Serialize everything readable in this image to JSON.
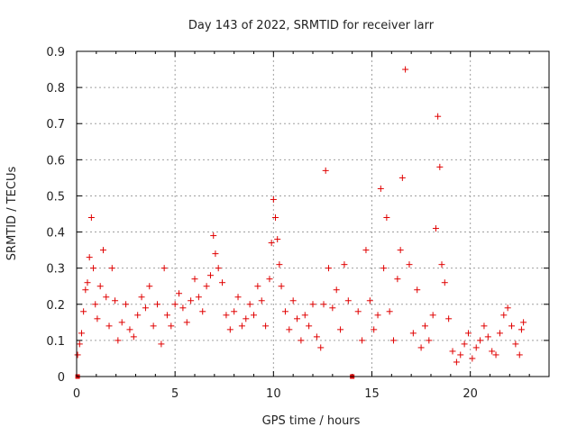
{
  "chart_data": {
    "type": "scatter",
    "title": "Day 143 of 2022, SRMTID for receiver larr",
    "xlabel": "GPS time / hours",
    "ylabel": "SRMTID / TECUs",
    "xlim": [
      0,
      24
    ],
    "ylim": [
      0,
      0.9
    ],
    "xticks": [
      0,
      5,
      10,
      15,
      20
    ],
    "xtick_labels": [
      "0",
      "5",
      "10",
      "15",
      "20"
    ],
    "yticks": [
      0,
      0.1,
      0.2,
      0.3,
      0.4,
      0.5,
      0.6,
      0.7,
      0.8,
      0.9
    ],
    "ytick_labels": [
      "0",
      "0.1",
      "0.2",
      "0.3",
      "0.4",
      "0.5",
      "0.6",
      "0.7",
      "0.8",
      "0.9"
    ],
    "grid": true,
    "marker": "+",
    "color": "#e00000",
    "series": [
      {
        "name": "SRMTID",
        "x": [
          0.05,
          0.15,
          0.25,
          0.35,
          0.45,
          0.55,
          0.65,
          0.75,
          0.85,
          0.95,
          1.05,
          1.2,
          1.35,
          1.5,
          1.65,
          1.8,
          1.95,
          2.1,
          2.3,
          2.5,
          2.7,
          2.9,
          3.1,
          3.3,
          3.5,
          3.7,
          3.9,
          4.1,
          4.3,
          4.45,
          4.6,
          4.8,
          5.0,
          5.2,
          5.4,
          5.6,
          5.8,
          6.0,
          6.2,
          6.4,
          6.6,
          6.8,
          6.95,
          7.05,
          7.2,
          7.4,
          7.6,
          7.8,
          8.0,
          8.2,
          8.4,
          8.6,
          8.8,
          9.0,
          9.2,
          9.4,
          9.6,
          9.8,
          9.9,
          10.0,
          10.1,
          10.2,
          10.3,
          10.4,
          10.6,
          10.8,
          11.0,
          11.2,
          11.4,
          11.6,
          11.8,
          12.0,
          12.2,
          12.4,
          12.55,
          12.65,
          12.8,
          13.0,
          13.2,
          13.4,
          13.6,
          13.8,
          14.3,
          14.5,
          14.7,
          14.9,
          15.1,
          15.3,
          15.45,
          15.6,
          15.75,
          15.9,
          16.1,
          16.3,
          16.45,
          16.55,
          16.7,
          16.9,
          17.1,
          17.3,
          17.5,
          17.7,
          17.9,
          18.1,
          18.25,
          18.35,
          18.45,
          18.55,
          18.7,
          18.9,
          19.1,
          19.3,
          19.5,
          19.7,
          19.9,
          20.1,
          20.3,
          20.5,
          20.7,
          20.9,
          21.1,
          21.3,
          21.5,
          21.7,
          21.9,
          22.1,
          22.3,
          22.5,
          22.6,
          22.7
        ],
        "y": [
          0.06,
          0.09,
          0.12,
          0.18,
          0.24,
          0.26,
          0.33,
          0.44,
          0.3,
          0.2,
          0.16,
          0.25,
          0.35,
          0.22,
          0.14,
          0.3,
          0.21,
          0.1,
          0.15,
          0.2,
          0.13,
          0.11,
          0.17,
          0.22,
          0.19,
          0.25,
          0.14,
          0.2,
          0.09,
          0.3,
          0.17,
          0.14,
          0.2,
          0.23,
          0.19,
          0.15,
          0.21,
          0.27,
          0.22,
          0.18,
          0.25,
          0.28,
          0.39,
          0.34,
          0.3,
          0.26,
          0.17,
          0.13,
          0.18,
          0.22,
          0.14,
          0.16,
          0.2,
          0.17,
          0.25,
          0.21,
          0.14,
          0.27,
          0.37,
          0.49,
          0.44,
          0.38,
          0.31,
          0.25,
          0.18,
          0.13,
          0.21,
          0.16,
          0.1,
          0.17,
          0.14,
          0.2,
          0.11,
          0.08,
          0.2,
          0.57,
          0.3,
          0.19,
          0.24,
          0.13,
          0.31,
          0.21,
          0.18,
          0.1,
          0.35,
          0.21,
          0.13,
          0.17,
          0.52,
          0.3,
          0.44,
          0.18,
          0.1,
          0.27,
          0.35,
          0.55,
          0.85,
          0.31,
          0.12,
          0.24,
          0.08,
          0.14,
          0.1,
          0.17,
          0.41,
          0.72,
          0.58,
          0.31,
          0.26,
          0.16,
          0.07,
          0.04,
          0.06,
          0.09,
          0.12,
          0.05,
          0.08,
          0.1,
          0.14,
          0.11,
          0.07,
          0.06,
          0.12,
          0.17,
          0.19,
          0.14,
          0.09,
          0.06,
          0.13,
          0.15
        ],
        "zero_markers_x": [
          0.05,
          14.0
        ]
      }
    ]
  }
}
